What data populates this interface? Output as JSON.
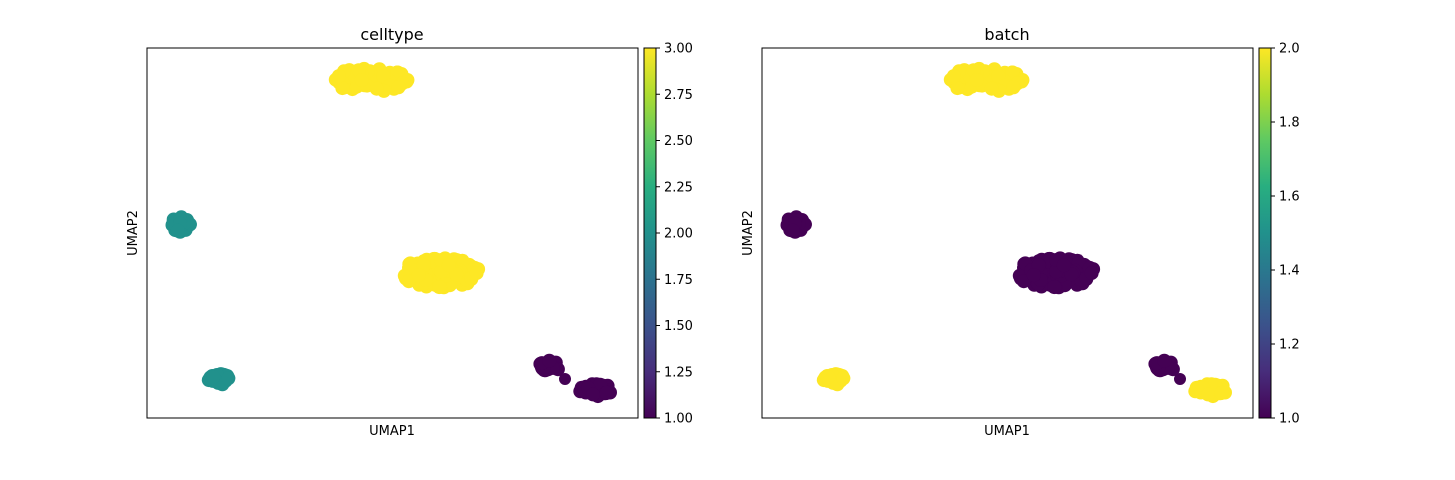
{
  "chart_data": [
    {
      "type": "scatter",
      "title": "celltype",
      "xlabel": "UMAP1",
      "ylabel": "UMAP2",
      "colorbar": {
        "colormap": "viridis",
        "range": [
          1.0,
          3.0
        ],
        "ticks": [
          1.0,
          1.25,
          1.5,
          1.75,
          2.0,
          2.25,
          2.5,
          2.75,
          3.0
        ],
        "tick_labels": [
          "1.00",
          "1.25",
          "1.50",
          "1.75",
          "2.00",
          "2.25",
          "2.50",
          "2.75",
          "3.00"
        ]
      },
      "clusters": [
        {
          "value": 3,
          "color": "#fde725"
        },
        {
          "value": 2,
          "color": "#21918c"
        },
        {
          "value": 3,
          "color": "#fde725"
        },
        {
          "value": 2,
          "color": "#21918c"
        },
        {
          "value": 1,
          "color": "#440154"
        },
        {
          "value": 1,
          "color": "#440154"
        }
      ]
    },
    {
      "type": "scatter",
      "title": "batch",
      "xlabel": "UMAP1",
      "ylabel": "UMAP2",
      "colorbar": {
        "colormap": "viridis",
        "range": [
          1.0,
          2.0
        ],
        "ticks": [
          1.0,
          1.2,
          1.4,
          1.6,
          1.8,
          2.0
        ],
        "tick_labels": [
          "1.0",
          "1.2",
          "1.4",
          "1.6",
          "1.8",
          "2.0"
        ]
      },
      "clusters": [
        {
          "value": 2,
          "color": "#fde725"
        },
        {
          "value": 1,
          "color": "#440154"
        },
        {
          "value": 1,
          "color": "#440154"
        },
        {
          "value": 2,
          "color": "#fde725"
        },
        {
          "value": 1,
          "color": "#440154"
        },
        {
          "value": 2,
          "color": "#fde725"
        }
      ]
    }
  ]
}
